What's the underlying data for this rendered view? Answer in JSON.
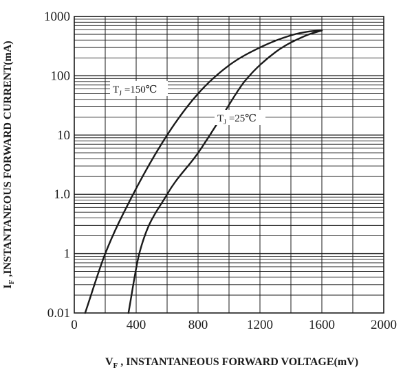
{
  "chart_data": {
    "type": "line",
    "xlabel": {
      "main": "V",
      "sub": "F",
      "rest": " , INSTANTANEOUS FORWARD VOLTAGE(mV)"
    },
    "ylabel": {
      "main": "I",
      "sub": "F",
      "rest": " ,INSTANTANEOUS FORWARD CURRENT(mA)"
    },
    "xlim": [
      0,
      2000
    ],
    "x_ticks": [
      {
        "value": 0,
        "label": "0"
      },
      {
        "value": 400,
        "label": "400"
      },
      {
        "value": 800,
        "label": "800"
      },
      {
        "value": 1200,
        "label": "1200"
      },
      {
        "value": 1600,
        "label": "1600"
      },
      {
        "value": 2000,
        "label": "2000"
      }
    ],
    "y_ticks": [
      {
        "label": "1000"
      },
      {
        "label": "100"
      },
      {
        "label": "10"
      },
      {
        "label": "1.0"
      },
      {
        "label": "1"
      },
      {
        "label": "0.01"
      }
    ],
    "y_scale": "log (decade grid)",
    "grid": true,
    "series": [
      {
        "name": "TJ=150℃",
        "annotation": {
          "main": "T",
          "sub": "J",
          "rest": " =150℃"
        },
        "points": [
          [
            70,
            0.01
          ],
          [
            200,
            0.1
          ],
          [
            380,
            1
          ],
          [
            600,
            10
          ],
          [
            800,
            50
          ],
          [
            1000,
            150
          ],
          [
            1200,
            300
          ],
          [
            1400,
            480
          ],
          [
            1520,
            560
          ],
          [
            1600,
            580
          ]
        ]
      },
      {
        "name": "TJ=25℃",
        "annotation": {
          "main": "T",
          "sub": "J",
          "rest": " =25℃"
        },
        "points": [
          [
            350,
            0.01
          ],
          [
            420,
            0.1
          ],
          [
            600,
            1
          ],
          [
            800,
            5
          ],
          [
            950,
            20
          ],
          [
            1100,
            80
          ],
          [
            1300,
            250
          ],
          [
            1500,
            480
          ],
          [
            1600,
            580
          ]
        ]
      }
    ]
  }
}
